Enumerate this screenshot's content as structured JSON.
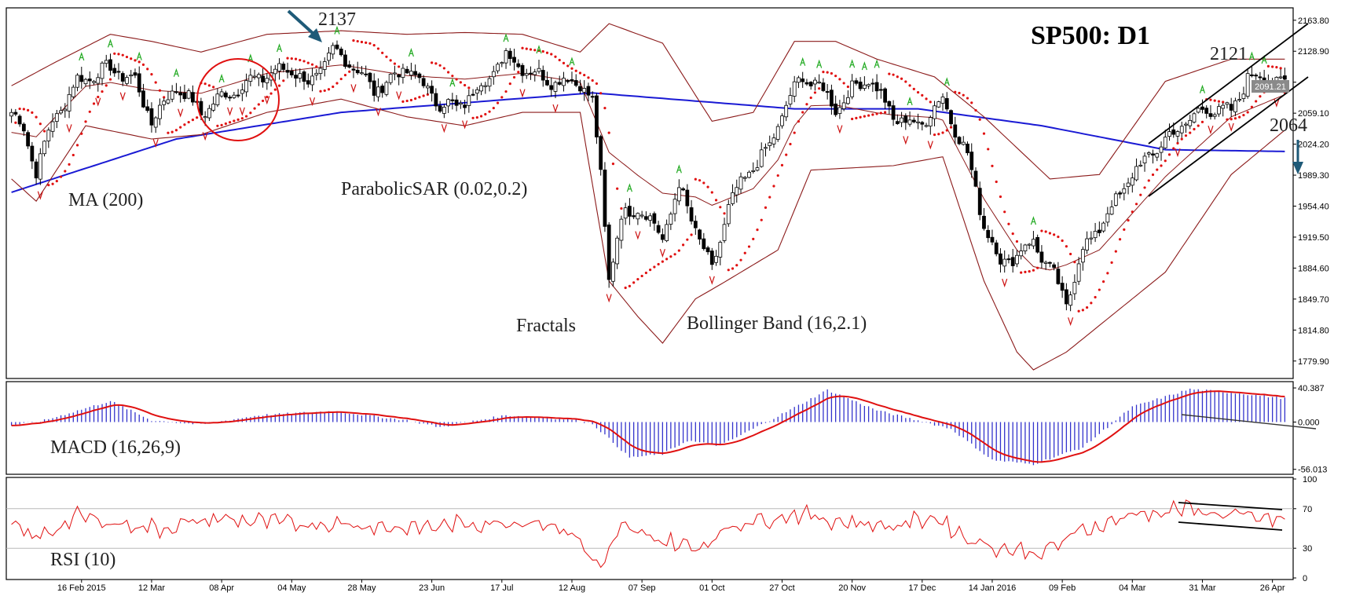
{
  "chart_data": {
    "type": "candlestick",
    "symbol": "SP500",
    "title": "SP500: D1",
    "colors": {
      "background": "#ffffff",
      "candle": "#000000",
      "ma": "#1a1ad4",
      "bollinger": "#8b1a1a",
      "sar": "#e01010",
      "fractal_up": "#22aa22",
      "fractal_down": "#cc1111",
      "macd_hist": "#3333cc",
      "macd_signal": "#e01010",
      "rsi": "#e01010",
      "annotation": "#222222",
      "arrow": "#1e5a78"
    },
    "price_axis": {
      "ticks": [
        2163.8,
        2128.9,
        2094.0,
        2059.1,
        2024.2,
        1989.3,
        1954.4,
        1919.5,
        1884.6,
        1849.7,
        1814.8,
        1779.9
      ],
      "tick_labels": [
        "2163.80",
        "2128.90",
        "",
        "2059.10",
        "2024.20",
        "1989.30",
        "1954.40",
        "1919.50",
        "1884.60",
        "1849.70",
        "1814.80",
        "1779.90"
      ],
      "current_price": 2091.21,
      "current_price_label": "2091.21",
      "range": [
        1762,
        2176
      ]
    },
    "date_axis": {
      "labels": [
        "16 Feb 2015",
        "12 Mar",
        "08 Apr",
        "04 May",
        "28 May",
        "23 Jun",
        "17 Jul",
        "12 Aug",
        "07 Sep",
        "01 Oct",
        "27 Oct",
        "20 Nov",
        "17 Dec",
        "14 Jan 2016",
        "09 Feb",
        "04 Mar",
        "31 Mar",
        "26 Apr"
      ],
      "label_bars": [
        17,
        34,
        51,
        68,
        85,
        102,
        119,
        136,
        153,
        170,
        187,
        204,
        221,
        238,
        255,
        272,
        289,
        306
      ]
    },
    "bars": 310,
    "price_anchors": [
      [
        0,
        2060
      ],
      [
        3,
        2040
      ],
      [
        6,
        1995
      ],
      [
        10,
        2050
      ],
      [
        16,
        2095
      ],
      [
        24,
        2110
      ],
      [
        30,
        2095
      ],
      [
        34,
        2050
      ],
      [
        40,
        2090
      ],
      [
        46,
        2060
      ],
      [
        52,
        2080
      ],
      [
        60,
        2100
      ],
      [
        68,
        2110
      ],
      [
        72,
        2090
      ],
      [
        78,
        2128
      ],
      [
        82,
        2118
      ],
      [
        88,
        2085
      ],
      [
        96,
        2110
      ],
      [
        104,
        2070
      ],
      [
        108,
        2065
      ],
      [
        115,
        2095
      ],
      [
        120,
        2125
      ],
      [
        126,
        2105
      ],
      [
        132,
        2095
      ],
      [
        138,
        2095
      ],
      [
        141,
        2070
      ],
      [
        143,
        1990
      ],
      [
        145,
        1875
      ],
      [
        148,
        1940
      ],
      [
        152,
        1955
      ],
      [
        158,
        1920
      ],
      [
        162,
        1975
      ],
      [
        166,
        1930
      ],
      [
        170,
        1880
      ],
      [
        174,
        1955
      ],
      [
        180,
        2000
      ],
      [
        184,
        2020
      ],
      [
        188,
        2070
      ],
      [
        192,
        2100
      ],
      [
        196,
        2090
      ],
      [
        200,
        2065
      ],
      [
        204,
        2085
      ],
      [
        208,
        2100
      ],
      [
        214,
        2055
      ],
      [
        220,
        2045
      ],
      [
        226,
        2075
      ],
      [
        232,
        2010
      ],
      [
        236,
        1935
      ],
      [
        240,
        1890
      ],
      [
        244,
        1900
      ],
      [
        248,
        1915
      ],
      [
        253,
        1875
      ],
      [
        256,
        1845
      ],
      [
        260,
        1905
      ],
      [
        266,
        1945
      ],
      [
        272,
        1990
      ],
      [
        278,
        2020
      ],
      [
        284,
        2045
      ],
      [
        290,
        2065
      ],
      [
        296,
        2060
      ],
      [
        300,
        2100
      ],
      [
        304,
        2100
      ],
      [
        309,
        2091
      ]
    ],
    "moving_average": {
      "label": "MA (200)",
      "anchors": [
        [
          0,
          1970
        ],
        [
          40,
          2030
        ],
        [
          80,
          2060
        ],
        [
          141,
          2082
        ],
        [
          160,
          2075
        ],
        [
          190,
          2064
        ],
        [
          220,
          2064
        ],
        [
          250,
          2045
        ],
        [
          280,
          2018
        ],
        [
          309,
          2016
        ]
      ]
    },
    "bollinger": {
      "label": "Bollinger Band (16,2.1)",
      "upper_anchors": [
        [
          0,
          2090
        ],
        [
          10,
          2115
        ],
        [
          24,
          2148
        ],
        [
          34,
          2140
        ],
        [
          46,
          2128
        ],
        [
          62,
          2148
        ],
        [
          80,
          2152
        ],
        [
          96,
          2148
        ],
        [
          110,
          2150
        ],
        [
          124,
          2148
        ],
        [
          138,
          2128
        ],
        [
          145,
          2160
        ],
        [
          158,
          2138
        ],
        [
          170,
          2050
        ],
        [
          180,
          2060
        ],
        [
          190,
          2140
        ],
        [
          200,
          2140
        ],
        [
          210,
          2120
        ],
        [
          224,
          2100
        ],
        [
          236,
          2055
        ],
        [
          252,
          1985
        ],
        [
          264,
          1990
        ],
        [
          280,
          2095
        ],
        [
          296,
          2120
        ],
        [
          309,
          2120
        ]
      ],
      "lower_anchors": [
        [
          0,
          1985
        ],
        [
          6,
          1960
        ],
        [
          18,
          2045
        ],
        [
          34,
          2030
        ],
        [
          46,
          2035
        ],
        [
          62,
          2060
        ],
        [
          80,
          2075
        ],
        [
          96,
          2055
        ],
        [
          110,
          2045
        ],
        [
          124,
          2060
        ],
        [
          138,
          2060
        ],
        [
          145,
          1870
        ],
        [
          152,
          1830
        ],
        [
          158,
          1800
        ],
        [
          166,
          1850
        ],
        [
          172,
          1866
        ],
        [
          186,
          1905
        ],
        [
          194,
          1995
        ],
        [
          214,
          2000
        ],
        [
          226,
          2010
        ],
        [
          236,
          1870
        ],
        [
          244,
          1790
        ],
        [
          248,
          1770
        ],
        [
          256,
          1790
        ],
        [
          264,
          1820
        ],
        [
          280,
          1880
        ],
        [
          296,
          1990
        ],
        [
          309,
          2040
        ]
      ]
    },
    "parabolic_sar": {
      "label": "ParabolicSAR (0.02,0.2)",
      "step": 0.02,
      "max": 0.2
    },
    "fractals": {
      "label": "Fractals"
    },
    "macd": {
      "label": "MACD (16,26,9)",
      "ticks": [
        40.387,
        0.0,
        -56.013
      ],
      "tick_labels": [
        "40.387",
        "0.000",
        "-56.013"
      ],
      "range": [
        -60,
        46
      ],
      "anchors": [
        [
          0,
          -4
        ],
        [
          8,
          2
        ],
        [
          24,
          25
        ],
        [
          34,
          2
        ],
        [
          46,
          -3
        ],
        [
          60,
          8
        ],
        [
          78,
          13
        ],
        [
          96,
          2
        ],
        [
          104,
          -6
        ],
        [
          120,
          8
        ],
        [
          136,
          3
        ],
        [
          141,
          -2
        ],
        [
          150,
          -42
        ],
        [
          158,
          -38
        ],
        [
          164,
          -22
        ],
        [
          172,
          -28
        ],
        [
          188,
          12
        ],
        [
          198,
          38
        ],
        [
          210,
          14
        ],
        [
          228,
          -8
        ],
        [
          238,
          -45
        ],
        [
          248,
          -50
        ],
        [
          260,
          -30
        ],
        [
          272,
          18
        ],
        [
          286,
          39
        ],
        [
          298,
          34
        ],
        [
          309,
          28
        ]
      ]
    },
    "rsi": {
      "label": "RSI (10)",
      "ticks": [
        100,
        70,
        30,
        0
      ],
      "tick_labels": [
        "100",
        "70",
        "30",
        "0"
      ],
      "range": [
        0,
        100
      ],
      "anchors": [
        [
          0,
          52
        ],
        [
          6,
          40
        ],
        [
          16,
          62
        ],
        [
          26,
          55
        ],
        [
          36,
          50
        ],
        [
          50,
          60
        ],
        [
          66,
          55
        ],
        [
          80,
          55
        ],
        [
          96,
          50
        ],
        [
          112,
          55
        ],
        [
          128,
          58
        ],
        [
          136,
          45
        ],
        [
          140,
          25
        ],
        [
          143,
          10
        ],
        [
          148,
          50
        ],
        [
          156,
          40
        ],
        [
          166,
          30
        ],
        [
          176,
          55
        ],
        [
          190,
          65
        ],
        [
          200,
          58
        ],
        [
          214,
          52
        ],
        [
          224,
          62
        ],
        [
          232,
          40
        ],
        [
          240,
          30
        ],
        [
          250,
          25
        ],
        [
          260,
          48
        ],
        [
          270,
          62
        ],
        [
          284,
          70
        ],
        [
          298,
          62
        ],
        [
          309,
          58
        ]
      ]
    },
    "annotations": {
      "price_2137": "2137",
      "price_2121": "2121",
      "price_2064": "2064"
    }
  }
}
